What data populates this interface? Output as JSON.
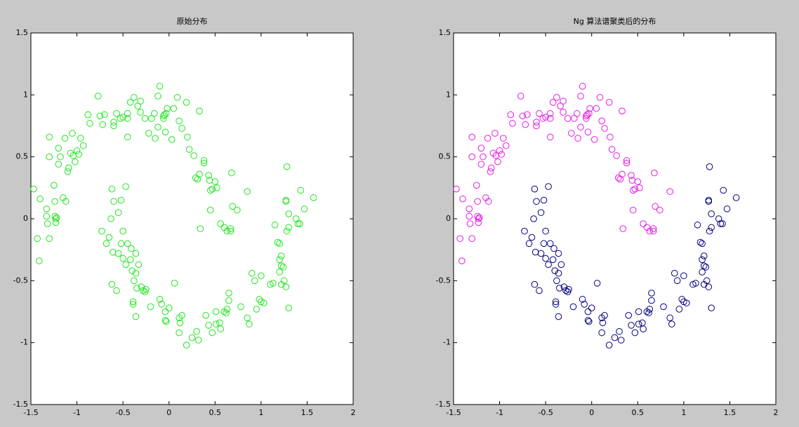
{
  "chart_data": [
    {
      "type": "scatter",
      "title": "原始分布",
      "xlim": [
        -1.5,
        2
      ],
      "ylim": [
        -1.5,
        1.5
      ],
      "xticks": [
        -1.5,
        -1,
        -0.5,
        0,
        0.5,
        1,
        1.5,
        2
      ],
      "yticks": [
        -1.5,
        -1,
        -0.5,
        0,
        0.5,
        1,
        1.5
      ],
      "marker": "circle",
      "series": [
        {
          "color": "#1ee61e",
          "x": [
            -1.47,
            -1.43,
            -1.41,
            -1.4,
            -1.33,
            -1.33,
            -1.32,
            -1.3,
            -1.3,
            -1.3,
            -1.25,
            -1.24,
            -1.24,
            -1.23,
            -1.23,
            -1.22,
            -1.2,
            -1.2,
            -1.18,
            -1.15,
            -1.13,
            -1.12,
            -1.1,
            -1.09,
            -1.07,
            -1.05,
            -1.04,
            -1.02,
            -1.0,
            -0.98,
            -0.96,
            -0.93,
            -0.88,
            -0.86,
            -0.77,
            -0.75,
            -0.72,
            -0.7,
            -0.6,
            -0.6,
            -0.57,
            -0.53,
            -0.5,
            -0.45,
            -0.45,
            -0.45,
            -0.42,
            -0.38,
            -0.34,
            -0.31,
            -0.31,
            -0.26,
            -0.22,
            -0.19,
            -0.16,
            -0.15,
            -0.12,
            -0.12,
            -0.1,
            -0.06,
            -0.06,
            -0.05,
            -0.03,
            -0.04,
            -0.02,
            0.03,
            0.05,
            0.09,
            0.11,
            0.14,
            0.19,
            0.2,
            0.22,
            0.27,
            0.33,
            0.38,
            0.38,
            0.33,
            0.29,
            0.31,
            0.43,
            0.44,
            0.45,
            0.47,
            0.5,
            0.52,
            0.45,
            0.34,
            0.56,
            0.6,
            0.63,
            0.67,
            0.69,
            0.67,
            0.68,
            0.74,
            0.85,
            -0.62,
            -0.47,
            -0.52,
            -0.55,
            -0.6,
            -0.63,
            -0.73,
            -0.68,
            -0.65,
            -0.61,
            -0.55,
            -0.5,
            -0.52,
            -0.45,
            -0.41,
            -0.47,
            -0.5,
            -0.42,
            -0.36,
            -0.4,
            -0.36,
            -0.33,
            -0.38,
            -0.35,
            -0.3,
            -0.28,
            -0.26,
            -0.25,
            -0.62,
            -0.57,
            -0.39,
            -0.39,
            -0.36,
            -0.2,
            -0.1,
            -0.08,
            -0.04,
            0.0,
            -0.04,
            -0.03,
            0.06,
            0.12,
            0.11,
            0.14,
            0.11,
            0.19,
            0.25,
            0.3,
            0.32,
            0.4,
            0.43,
            0.47,
            0.51,
            0.51,
            0.55,
            0.56,
            0.6,
            0.62,
            0.63,
            0.65,
            0.65,
            0.78,
            0.85,
            0.87,
            0.9,
            0.93,
            0.95,
            0.98,
            1.0,
            1.03,
            1.0,
            1.1,
            1.13,
            1.15,
            1.18,
            1.2,
            1.2,
            1.22,
            1.2,
            1.24,
            1.25,
            1.22,
            1.22,
            1.27,
            1.28,
            1.27,
            1.27,
            1.3,
            1.3,
            1.28,
            1.3,
            1.38,
            1.4,
            1.43,
            1.42,
            1.47,
            1.57
          ],
          "y": [
            0.24,
            -0.16,
            -0.34,
            0.16,
            0.08,
            0.02,
            -0.04,
            -0.16,
            0.5,
            0.66,
            0.27,
            0.02,
            0.14,
            0.0,
            -0.03,
            0.01,
            0.57,
            0.44,
            0.5,
            0.17,
            0.65,
            0.14,
            0.38,
            0.41,
            0.53,
            0.69,
            0.51,
            0.46,
            0.55,
            0.52,
            0.65,
            0.59,
            0.84,
            0.77,
            0.99,
            0.83,
            0.76,
            0.84,
            0.75,
            0.78,
            0.85,
            0.81,
            0.82,
            0.81,
            0.85,
            0.66,
            0.94,
            0.98,
            0.91,
            0.86,
            0.95,
            0.81,
            0.69,
            0.81,
            0.85,
            0.65,
            0.99,
            0.74,
            1.07,
            0.81,
            0.83,
            0.84,
            0.85,
            0.7,
            0.89,
            0.64,
            0.89,
            0.98,
            0.79,
            0.73,
            0.94,
            0.66,
            0.56,
            0.51,
            0.87,
            0.47,
            0.45,
            0.36,
            0.33,
            0.32,
            0.35,
            0.31,
            0.23,
            0.24,
            0.3,
            0.25,
            0.07,
            -0.08,
            -0.04,
            -0.07,
            -0.1,
            -0.08,
            0.1,
            -0.1,
            0.37,
            0.07,
            0.22,
            0.24,
            0.26,
            0.15,
            0.05,
            0.14,
            0.0,
            -0.1,
            -0.2,
            -0.15,
            -0.27,
            -0.28,
            -0.1,
            -0.2,
            -0.2,
            -0.24,
            -0.37,
            -0.32,
            -0.33,
            -0.28,
            -0.42,
            -0.44,
            -0.37,
            -0.5,
            -0.56,
            -0.55,
            -0.58,
            -0.59,
            -0.57,
            -0.53,
            -0.58,
            -0.67,
            -0.69,
            -0.79,
            -0.71,
            -0.65,
            -0.69,
            -0.75,
            -0.72,
            -0.82,
            -0.83,
            -0.52,
            -0.84,
            -0.8,
            -0.78,
            -0.92,
            -1.02,
            -0.96,
            -0.91,
            -0.98,
            -0.78,
            -0.86,
            -0.92,
            -0.75,
            -0.85,
            -0.84,
            -0.89,
            -0.75,
            -0.76,
            -0.73,
            -0.66,
            -0.6,
            -0.71,
            -0.8,
            -0.85,
            -0.44,
            -0.5,
            -0.73,
            -0.65,
            -0.67,
            -0.68,
            -0.46,
            -0.53,
            -0.52,
            -0.05,
            -0.19,
            -0.2,
            -0.33,
            -0.38,
            -0.43,
            -0.39,
            -0.5,
            -0.53,
            -0.3,
            -0.55,
            0.42,
            0.15,
            0.14,
            0.04,
            -0.72,
            -0.1,
            -0.07,
            0.0,
            -0.04,
            0.23,
            -0.04,
            0.08,
            0.17
          ]
        }
      ]
    },
    {
      "type": "scatter",
      "title": "Ng 算法谱聚类后的分布",
      "xlim": [
        -1.5,
        2
      ],
      "ylim": [
        -1.5,
        1.5
      ],
      "xticks": [
        -1.5,
        -1,
        -0.5,
        0,
        0.5,
        1,
        1.5,
        2
      ],
      "yticks": [
        -1.5,
        -1,
        -0.5,
        0,
        0.5,
        1,
        1.5
      ],
      "marker": "circle",
      "series": [
        {
          "color": "#e619e6",
          "x": [
            -1.47,
            -1.43,
            -1.41,
            -1.4,
            -1.33,
            -1.33,
            -1.32,
            -1.3,
            -1.3,
            -1.3,
            -1.25,
            -1.24,
            -1.24,
            -1.23,
            -1.23,
            -1.22,
            -1.2,
            -1.2,
            -1.18,
            -1.15,
            -1.13,
            -1.12,
            -1.1,
            -1.09,
            -1.07,
            -1.05,
            -1.04,
            -1.02,
            -1.0,
            -0.98,
            -0.96,
            -0.93,
            -0.88,
            -0.86,
            -0.77,
            -0.75,
            -0.72,
            -0.7,
            -0.6,
            -0.6,
            -0.57,
            -0.53,
            -0.5,
            -0.45,
            -0.45,
            -0.45,
            -0.42,
            -0.38,
            -0.34,
            -0.31,
            -0.31,
            -0.26,
            -0.22,
            -0.19,
            -0.16,
            -0.15,
            -0.12,
            -0.12,
            -0.1,
            -0.06,
            -0.06,
            -0.05,
            -0.03,
            -0.04,
            -0.02,
            0.03,
            0.05,
            0.09,
            0.11,
            0.14,
            0.19,
            0.2,
            0.22,
            0.27,
            0.33,
            0.38,
            0.38,
            0.33,
            0.29,
            0.31,
            0.43,
            0.44,
            0.45,
            0.47,
            0.5,
            0.52,
            0.45,
            0.34,
            0.56,
            0.6,
            0.63,
            0.67,
            0.69,
            0.67,
            0.68,
            0.74,
            0.85
          ],
          "y": [
            0.24,
            -0.16,
            -0.34,
            0.16,
            0.08,
            0.02,
            -0.04,
            -0.16,
            0.5,
            0.66,
            0.27,
            0.02,
            0.14,
            0.0,
            -0.03,
            0.01,
            0.57,
            0.44,
            0.5,
            0.17,
            0.65,
            0.14,
            0.38,
            0.41,
            0.53,
            0.69,
            0.51,
            0.46,
            0.55,
            0.52,
            0.65,
            0.59,
            0.84,
            0.77,
            0.99,
            0.83,
            0.76,
            0.84,
            0.75,
            0.78,
            0.85,
            0.81,
            0.82,
            0.81,
            0.85,
            0.66,
            0.94,
            0.98,
            0.91,
            0.86,
            0.95,
            0.81,
            0.69,
            0.81,
            0.85,
            0.65,
            0.99,
            0.74,
            1.07,
            0.81,
            0.83,
            0.84,
            0.85,
            0.7,
            0.89,
            0.64,
            0.89,
            0.98,
            0.79,
            0.73,
            0.94,
            0.66,
            0.56,
            0.51,
            0.87,
            0.47,
            0.45,
            0.36,
            0.33,
            0.32,
            0.35,
            0.31,
            0.23,
            0.24,
            0.3,
            0.25,
            0.07,
            -0.08,
            -0.04,
            -0.07,
            -0.1,
            -0.08,
            0.1,
            -0.1,
            0.37,
            0.07,
            0.22
          ]
        },
        {
          "color": "#000080",
          "x": [
            -0.62,
            -0.47,
            -0.52,
            -0.55,
            -0.6,
            -0.63,
            -0.73,
            -0.68,
            -0.65,
            -0.61,
            -0.55,
            -0.5,
            -0.52,
            -0.45,
            -0.41,
            -0.47,
            -0.5,
            -0.42,
            -0.36,
            -0.4,
            -0.36,
            -0.33,
            -0.38,
            -0.35,
            -0.3,
            -0.28,
            -0.26,
            -0.25,
            -0.62,
            -0.57,
            -0.39,
            -0.39,
            -0.36,
            -0.2,
            -0.1,
            -0.08,
            -0.04,
            0.0,
            -0.04,
            -0.03,
            0.06,
            0.12,
            0.11,
            0.14,
            0.11,
            0.19,
            0.25,
            0.3,
            0.32,
            0.4,
            0.43,
            0.47,
            0.51,
            0.51,
            0.55,
            0.56,
            0.6,
            0.62,
            0.63,
            0.65,
            0.65,
            0.78,
            0.85,
            0.87,
            0.9,
            0.93,
            0.95,
            0.98,
            1.0,
            1.03,
            1.0,
            1.1,
            1.13,
            1.15,
            1.18,
            1.2,
            1.2,
            1.22,
            1.2,
            1.24,
            1.25,
            1.22,
            1.22,
            1.27,
            1.28,
            1.27,
            1.27,
            1.3,
            1.3,
            1.28,
            1.3,
            1.38,
            1.4,
            1.43,
            1.42,
            1.47,
            1.57
          ],
          "y": [
            0.24,
            0.26,
            0.15,
            0.05,
            0.14,
            0.0,
            -0.1,
            -0.2,
            -0.15,
            -0.27,
            -0.28,
            -0.1,
            -0.2,
            -0.2,
            -0.24,
            -0.37,
            -0.32,
            -0.33,
            -0.28,
            -0.42,
            -0.44,
            -0.37,
            -0.5,
            -0.56,
            -0.55,
            -0.58,
            -0.59,
            -0.57,
            -0.53,
            -0.58,
            -0.67,
            -0.69,
            -0.79,
            -0.71,
            -0.65,
            -0.69,
            -0.75,
            -0.72,
            -0.82,
            -0.83,
            -0.52,
            -0.84,
            -0.8,
            -0.78,
            -0.92,
            -1.02,
            -0.96,
            -0.91,
            -0.98,
            -0.78,
            -0.86,
            -0.92,
            -0.75,
            -0.85,
            -0.84,
            -0.89,
            -0.75,
            -0.76,
            -0.73,
            -0.66,
            -0.6,
            -0.71,
            -0.8,
            -0.85,
            -0.44,
            -0.5,
            -0.73,
            -0.65,
            -0.67,
            -0.68,
            -0.46,
            -0.53,
            -0.52,
            -0.05,
            -0.19,
            -0.2,
            -0.33,
            -0.38,
            -0.43,
            -0.39,
            -0.5,
            -0.53,
            -0.3,
            -0.55,
            0.42,
            0.15,
            0.14,
            0.04,
            -0.72,
            -0.1,
            -0.07,
            0.0,
            -0.04,
            0.23,
            -0.04,
            0.08,
            0.17
          ]
        }
      ]
    }
  ]
}
